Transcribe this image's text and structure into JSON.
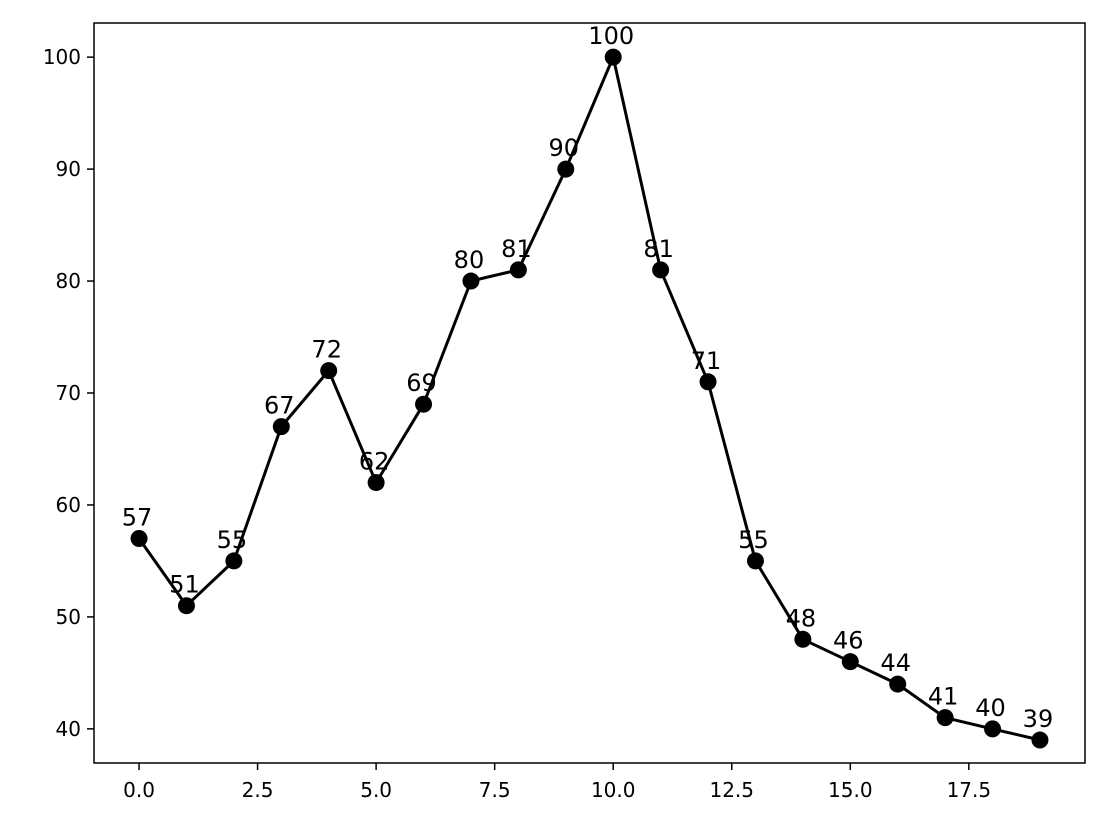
{
  "chart_data": {
    "type": "line",
    "title": "",
    "xlabel": "",
    "ylabel": "",
    "x": [
      0,
      1,
      2,
      3,
      4,
      5,
      6,
      7,
      8,
      9,
      10,
      11,
      12,
      13,
      14,
      15,
      16,
      17,
      18,
      19
    ],
    "series": [
      {
        "values": [
          57,
          51,
          55,
          67,
          72,
          62,
          69,
          80,
          81,
          90,
          100,
          81,
          71,
          55,
          48,
          46,
          44,
          41,
          40,
          39
        ],
        "color": "#000000",
        "marker": "circle",
        "data_labels": true
      }
    ],
    "xlim": [
      -0.95,
      19.95
    ],
    "ylim": [
      36.95,
      103.05
    ],
    "xticks": [
      0.0,
      2.5,
      5.0,
      7.5,
      10.0,
      12.5,
      15.0,
      17.5
    ],
    "xtick_labels": [
      "0.0",
      "2.5",
      "5.0",
      "7.5",
      "10.0",
      "12.5",
      "15.0",
      "17.5"
    ],
    "yticks": [
      40,
      50,
      60,
      70,
      80,
      90,
      100
    ],
    "ytick_labels": [
      "40",
      "50",
      "60",
      "70",
      "80",
      "90",
      "100"
    ],
    "grid": false,
    "legend": "none"
  }
}
